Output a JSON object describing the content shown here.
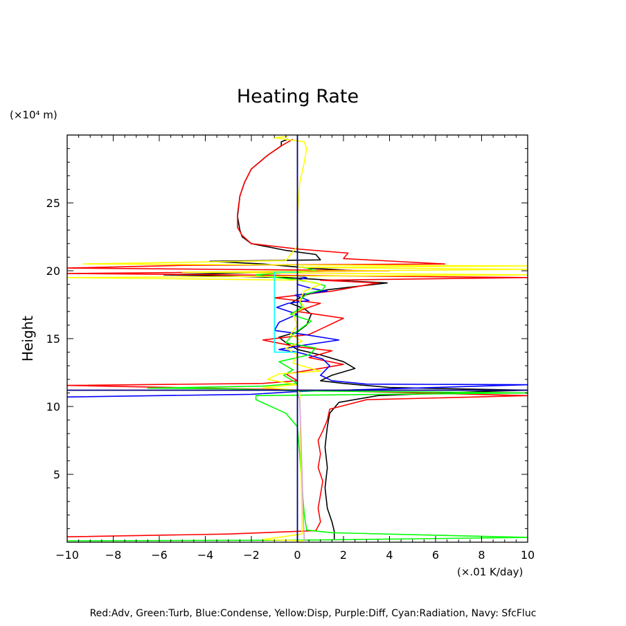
{
  "chart_data": {
    "type": "line",
    "title": "Heating Rate",
    "ylabel": "Height",
    "yunits": "(×10⁴ m)",
    "xunits": "(×.01 K/day)",
    "legend_text": "Red:Adv, Green:Turb, Blue:Condense, Yellow:Disp, Purple:Diff, Cyan:Radiation, Navy: SfcFluc",
    "xlim": [
      -10,
      10
    ],
    "ylim": [
      0,
      30
    ],
    "x_ticks": [
      -10,
      -8,
      -6,
      -4,
      -2,
      0,
      2,
      4,
      6,
      8,
      10
    ],
    "x_tick_labels": [
      "−10",
      "−8",
      "−6",
      "−4",
      "−2",
      "0",
      "2",
      "4",
      "6",
      "8",
      "10"
    ],
    "y_ticks": [
      5,
      10,
      15,
      20,
      25
    ],
    "y_tick_labels": [
      "5",
      "10",
      "15",
      "20",
      "25"
    ],
    "grid": false,
    "series": [
      {
        "key": "black",
        "color": "#000000",
        "width": 1.6,
        "points": [
          [
            1.6,
            0.2
          ],
          [
            1.6,
            0.8
          ],
          [
            1.5,
            1.5
          ],
          [
            1.3,
            2.5
          ],
          [
            1.2,
            4.0
          ],
          [
            1.3,
            5.5
          ],
          [
            1.2,
            7.0
          ],
          [
            1.3,
            8.5
          ],
          [
            1.4,
            9.5
          ],
          [
            1.8,
            10.3
          ],
          [
            3.5,
            10.8
          ],
          [
            8.0,
            11.1
          ],
          [
            10.0,
            11.2
          ],
          [
            4.0,
            11.4
          ],
          [
            2.0,
            11.7
          ],
          [
            1.0,
            11.9
          ],
          [
            1.5,
            12.3
          ],
          [
            2.5,
            12.8
          ],
          [
            2.0,
            13.3
          ],
          [
            1.0,
            13.8
          ],
          [
            0.0,
            14.2
          ],
          [
            -0.5,
            14.7
          ],
          [
            -0.8,
            15.1
          ],
          [
            0.0,
            15.5
          ],
          [
            0.4,
            16.0
          ],
          [
            0.6,
            16.8
          ],
          [
            0.3,
            17.2
          ],
          [
            -0.3,
            17.6
          ],
          [
            0.3,
            18.2
          ],
          [
            1.3,
            18.6
          ],
          [
            3.9,
            19.1
          ],
          [
            1.5,
            19.3
          ],
          [
            -0.5,
            19.5
          ],
          [
            -3.0,
            19.6
          ],
          [
            -5.8,
            19.7
          ],
          [
            -1.0,
            19.9
          ],
          [
            2.5,
            20.0
          ],
          [
            0.5,
            20.2
          ],
          [
            -1.5,
            20.5
          ],
          [
            -3.8,
            20.7
          ],
          [
            1.0,
            20.8
          ],
          [
            0.8,
            21.2
          ],
          [
            -0.5,
            21.5
          ],
          [
            -2.0,
            22.0
          ],
          [
            -2.4,
            22.5
          ],
          [
            -2.5,
            23.0
          ],
          [
            -2.6,
            24.0
          ],
          [
            -2.5,
            25.5
          ],
          [
            -2.3,
            26.5
          ],
          [
            -2.0,
            27.5
          ],
          [
            -1.3,
            28.5
          ],
          [
            -0.7,
            29.2
          ],
          [
            -0.7,
            29.5
          ],
          [
            -0.4,
            29.7
          ]
        ]
      },
      {
        "key": "red",
        "color": "#ff0000",
        "width": 1.6,
        "points": [
          [
            -10.0,
            0.4
          ],
          [
            -3.0,
            0.6
          ],
          [
            0.8,
            0.85
          ],
          [
            1.0,
            1.5
          ],
          [
            0.9,
            2.5
          ],
          [
            1.0,
            3.5
          ],
          [
            1.1,
            4.5
          ],
          [
            0.9,
            5.5
          ],
          [
            1.0,
            6.5
          ],
          [
            0.9,
            7.5
          ],
          [
            1.1,
            8.2
          ],
          [
            1.3,
            9.0
          ],
          [
            1.4,
            9.8
          ],
          [
            3.0,
            10.5
          ],
          [
            10.0,
            10.8
          ],
          [
            0.5,
            11.2
          ],
          [
            -10.0,
            11.55
          ],
          [
            -1.5,
            11.7
          ],
          [
            0.0,
            11.9
          ],
          [
            -0.5,
            12.4
          ],
          [
            1.0,
            12.8
          ],
          [
            2.0,
            13.1
          ],
          [
            0.5,
            13.6
          ],
          [
            1.5,
            14.1
          ],
          [
            0.0,
            14.4
          ],
          [
            -1.5,
            14.9
          ],
          [
            0.5,
            15.3
          ],
          [
            1.0,
            15.7
          ],
          [
            2.0,
            16.5
          ],
          [
            0.0,
            17.0
          ],
          [
            1.0,
            17.6
          ],
          [
            -1.0,
            18.0
          ],
          [
            1.5,
            18.5
          ],
          [
            3.5,
            19.1
          ],
          [
            1.0,
            19.3
          ],
          [
            10.0,
            19.5
          ],
          [
            -10.0,
            19.8
          ],
          [
            4.0,
            20.0
          ],
          [
            -10.0,
            20.2
          ],
          [
            -5.0,
            20.4
          ],
          [
            6.4,
            20.5
          ],
          [
            2.0,
            20.9
          ],
          [
            2.2,
            21.3
          ],
          [
            0.0,
            21.6
          ],
          [
            -2.0,
            22.0
          ],
          [
            -2.4,
            22.6
          ],
          [
            -2.6,
            23.2
          ],
          [
            -2.6,
            24.2
          ],
          [
            -2.5,
            25.5
          ],
          [
            -2.3,
            26.5
          ],
          [
            -2.0,
            27.5
          ],
          [
            -1.3,
            28.5
          ],
          [
            -0.7,
            29.2
          ],
          [
            -0.2,
            29.7
          ]
        ]
      },
      {
        "key": "blue",
        "color": "#0000ff",
        "width": 1.6,
        "points": [
          [
            -10.0,
            10.7
          ],
          [
            -2.0,
            10.9
          ],
          [
            0.0,
            11.1
          ],
          [
            10.0,
            11.6
          ],
          [
            3.0,
            11.65
          ],
          [
            1.5,
            11.9
          ],
          [
            1.0,
            12.3
          ],
          [
            1.4,
            13.0
          ],
          [
            1.1,
            13.5
          ],
          [
            0.0,
            14.0
          ],
          [
            -0.8,
            14.2
          ],
          [
            0.2,
            14.5
          ],
          [
            1.8,
            14.9
          ],
          [
            0.3,
            15.3
          ],
          [
            -1.0,
            15.6
          ],
          [
            -0.8,
            16.2
          ],
          [
            0.0,
            16.8
          ],
          [
            -0.9,
            17.3
          ],
          [
            -0.4,
            17.6
          ],
          [
            0.5,
            17.8
          ],
          [
            -0.1,
            18.2
          ],
          [
            1.3,
            18.5
          ],
          [
            0.6,
            18.7
          ],
          [
            0.0,
            19.0
          ],
          [
            0.0,
            19.3
          ],
          [
            0.4,
            19.5
          ],
          [
            0.0,
            19.6
          ]
        ]
      },
      {
        "key": "green",
        "color": "#00ff00",
        "width": 1.6,
        "points": [
          [
            -10.0,
            0.1
          ],
          [
            0.0,
            0.15
          ],
          [
            10.0,
            0.35
          ],
          [
            1.5,
            0.7
          ],
          [
            0.4,
            0.9
          ],
          [
            0.3,
            2.0
          ],
          [
            0.2,
            4.0
          ],
          [
            0.1,
            6.5
          ],
          [
            0.0,
            8.5
          ],
          [
            -0.5,
            9.5
          ],
          [
            -1.8,
            10.5
          ],
          [
            -1.8,
            10.8
          ],
          [
            10.0,
            11.0
          ],
          [
            0.0,
            11.15
          ],
          [
            -3.0,
            11.3
          ],
          [
            -6.5,
            11.35
          ],
          [
            -1.5,
            11.5
          ],
          [
            0.0,
            11.7
          ],
          [
            -0.6,
            12.3
          ],
          [
            -0.2,
            12.7
          ],
          [
            -0.5,
            13.0
          ],
          [
            -0.8,
            13.3
          ],
          [
            0.5,
            13.8
          ],
          [
            0.8,
            14.3
          ],
          [
            -0.5,
            14.7
          ],
          [
            -0.2,
            15.3
          ],
          [
            0.2,
            15.8
          ],
          [
            0.6,
            16.3
          ],
          [
            -0.3,
            16.8
          ],
          [
            0.2,
            17.3
          ],
          [
            0.1,
            17.8
          ],
          [
            0.4,
            18.3
          ],
          [
            1.1,
            18.6
          ],
          [
            1.2,
            18.9
          ],
          [
            0.8,
            19.1
          ],
          [
            -0.3,
            19.4
          ],
          [
            -1.5,
            19.6
          ],
          [
            -1.8,
            19.7
          ],
          [
            0.8,
            20.0
          ],
          [
            0.2,
            20.3
          ]
        ]
      },
      {
        "key": "yellow",
        "color": "#ffff00",
        "width": 1.6,
        "points": [
          [
            0.3,
            0.1
          ],
          [
            -1.5,
            0.2
          ],
          [
            0.2,
            0.6
          ],
          [
            0.2,
            0.9
          ],
          [
            0.1,
            11.0
          ],
          [
            0.0,
            11.2
          ],
          [
            -1.5,
            11.4
          ],
          [
            0.0,
            11.6
          ],
          [
            -1.3,
            12.0
          ],
          [
            -0.8,
            12.4
          ],
          [
            1.0,
            12.6
          ],
          [
            -0.2,
            13.2
          ],
          [
            0.0,
            13.8
          ],
          [
            -0.5,
            14.3
          ],
          [
            0.2,
            14.8
          ],
          [
            -0.3,
            15.3
          ],
          [
            0.0,
            16.0
          ],
          [
            -0.2,
            16.8
          ],
          [
            0.3,
            17.3
          ],
          [
            0.1,
            17.8
          ],
          [
            0.3,
            18.5
          ],
          [
            1.0,
            19.0
          ],
          [
            0.2,
            19.3
          ],
          [
            -10.0,
            19.5
          ],
          [
            10.0,
            19.7
          ],
          [
            -5.0,
            19.9
          ],
          [
            10.0,
            20.1
          ],
          [
            0.0,
            20.25
          ],
          [
            10.0,
            20.35
          ],
          [
            -9.3,
            20.5
          ],
          [
            -0.5,
            20.75
          ],
          [
            -0.3,
            21.2
          ],
          [
            0.0,
            21.8
          ],
          [
            0.0,
            24.0
          ],
          [
            0.1,
            26.5
          ],
          [
            0.3,
            28.0
          ],
          [
            0.4,
            29.0
          ],
          [
            0.3,
            29.5
          ],
          [
            -1.0,
            29.8
          ],
          [
            -0.4,
            29.9
          ]
        ]
      },
      {
        "key": "purple",
        "color": "#d59fd5",
        "width": 1.6,
        "points": [
          [
            0.3,
            0.1
          ],
          [
            0.25,
            2.0
          ],
          [
            0.2,
            5.0
          ],
          [
            0.15,
            8.0
          ],
          [
            0.1,
            10.5
          ],
          [
            0.0,
            11.0
          ]
        ]
      },
      {
        "key": "cyan",
        "color": "#00ffff",
        "width": 1.6,
        "points": [
          [
            0.0,
            14.0
          ],
          [
            -1.0,
            14.0
          ],
          [
            -1.0,
            19.9
          ],
          [
            0.0,
            19.9
          ]
        ]
      },
      {
        "key": "navy",
        "color": "#000080",
        "width": 1.8,
        "points": [
          [
            0.0,
            0.0
          ],
          [
            0.0,
            30.0
          ]
        ]
      },
      {
        "key": "navy-hline",
        "color": "#000080",
        "width": 1.8,
        "points": [
          [
            -10.0,
            11.2
          ],
          [
            10.0,
            11.2
          ]
        ]
      }
    ]
  }
}
